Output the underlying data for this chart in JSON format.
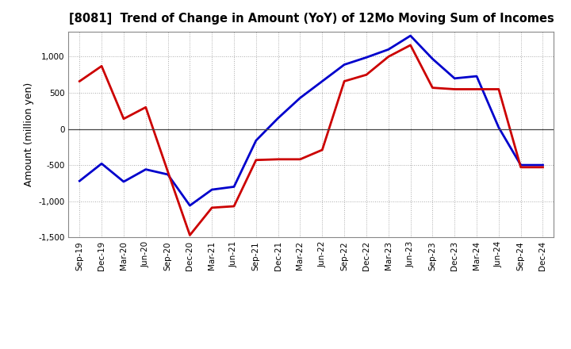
{
  "title": "[8081]  Trend of Change in Amount (YoY) of 12Mo Moving Sum of Incomes",
  "ylabel": "Amount (million yen)",
  "background_color": "#ffffff",
  "grid_color": "#aaaaaa",
  "x_labels": [
    "Sep-19",
    "Dec-19",
    "Mar-20",
    "Jun-20",
    "Sep-20",
    "Dec-20",
    "Mar-21",
    "Jun-21",
    "Sep-21",
    "Dec-21",
    "Mar-22",
    "Jun-22",
    "Sep-22",
    "Dec-22",
    "Mar-23",
    "Jun-23",
    "Sep-23",
    "Dec-23",
    "Mar-24",
    "Jun-24",
    "Sep-24",
    "Dec-24"
  ],
  "ordinary_income": [
    -720,
    -480,
    -730,
    -560,
    -630,
    -1060,
    -840,
    -800,
    -160,
    150,
    430,
    660,
    890,
    990,
    1100,
    1290,
    970,
    700,
    730,
    20,
    -500,
    -500
  ],
  "net_income": [
    660,
    870,
    140,
    300,
    -590,
    -1470,
    -1090,
    -1070,
    -430,
    -420,
    -420,
    -290,
    660,
    750,
    1000,
    1160,
    570,
    550,
    550,
    550,
    -530,
    -530
  ],
  "ylim": [
    -1500,
    1350
  ],
  "yticks": [
    -1500,
    -1000,
    -500,
    0,
    500,
    1000
  ],
  "ordinary_color": "#0000cc",
  "net_color": "#cc0000",
  "line_width": 2.0
}
